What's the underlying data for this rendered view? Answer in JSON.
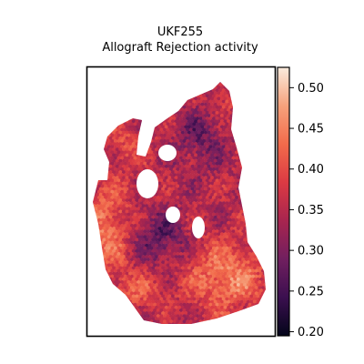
{
  "chart_data": {
    "type": "heatmap",
    "subtype": "spatial-transcriptomics-hex-spot-map",
    "title": "UKF255",
    "subtitle": "Allograft Rejection activity",
    "xlabel": "",
    "ylabel": "",
    "grid": false,
    "colormap": "rocket",
    "colormap_stops": [
      "#03051a",
      "#3b0f4f",
      "#711f5f",
      "#a8254f",
      "#db3a43",
      "#f26b4b",
      "#f6a27c",
      "#faebdd"
    ],
    "colorbar": {
      "range": [
        0.195,
        0.525
      ],
      "ticks": [
        0.2,
        0.25,
        0.3,
        0.35,
        0.4,
        0.45,
        0.5
      ],
      "tick_labels": [
        "0.20",
        "0.25",
        "0.30",
        "0.35",
        "0.40",
        "0.45",
        "0.50"
      ],
      "placement": "right"
    },
    "value_regions": [
      {
        "region": "top-right lobe",
        "approx_value": 0.34
      },
      {
        "region": "top-left small lobe",
        "approx_value": 0.38
      },
      {
        "region": "center-left",
        "approx_value": 0.3
      },
      {
        "region": "left edge",
        "approx_value": 0.42
      },
      {
        "region": "bottom-right",
        "approx_value": 0.46
      },
      {
        "region": "bottom-left",
        "approx_value": 0.41
      }
    ]
  }
}
